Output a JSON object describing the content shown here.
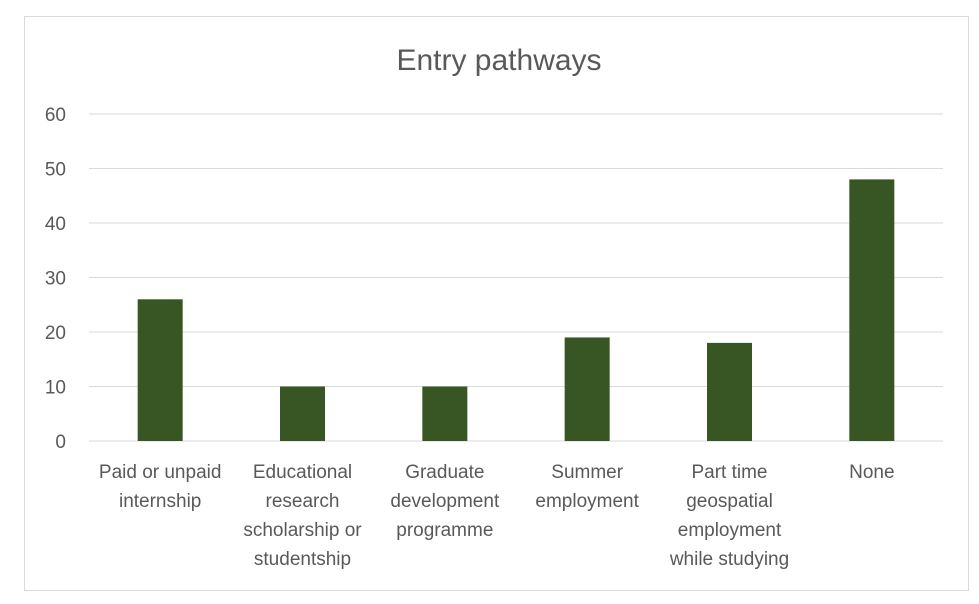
{
  "chart_data": {
    "type": "bar",
    "title": "Entry pathways",
    "xlabel": "",
    "ylabel": "",
    "ylim": [
      0,
      60
    ],
    "yticks": [
      0,
      10,
      20,
      30,
      40,
      50,
      60
    ],
    "grid": true,
    "legend": "none",
    "bar_color": "#375623",
    "categories": [
      [
        "Paid or unpaid",
        "internship"
      ],
      [
        "Educational",
        "research",
        "scholarship or",
        "studentship"
      ],
      [
        "Graduate",
        "development",
        "programme"
      ],
      [
        "Summer",
        "employment"
      ],
      [
        "Part time",
        "geospatial",
        "employment",
        "while studying"
      ],
      [
        "None"
      ]
    ],
    "values": [
      26,
      10,
      10,
      19,
      18,
      48
    ]
  }
}
